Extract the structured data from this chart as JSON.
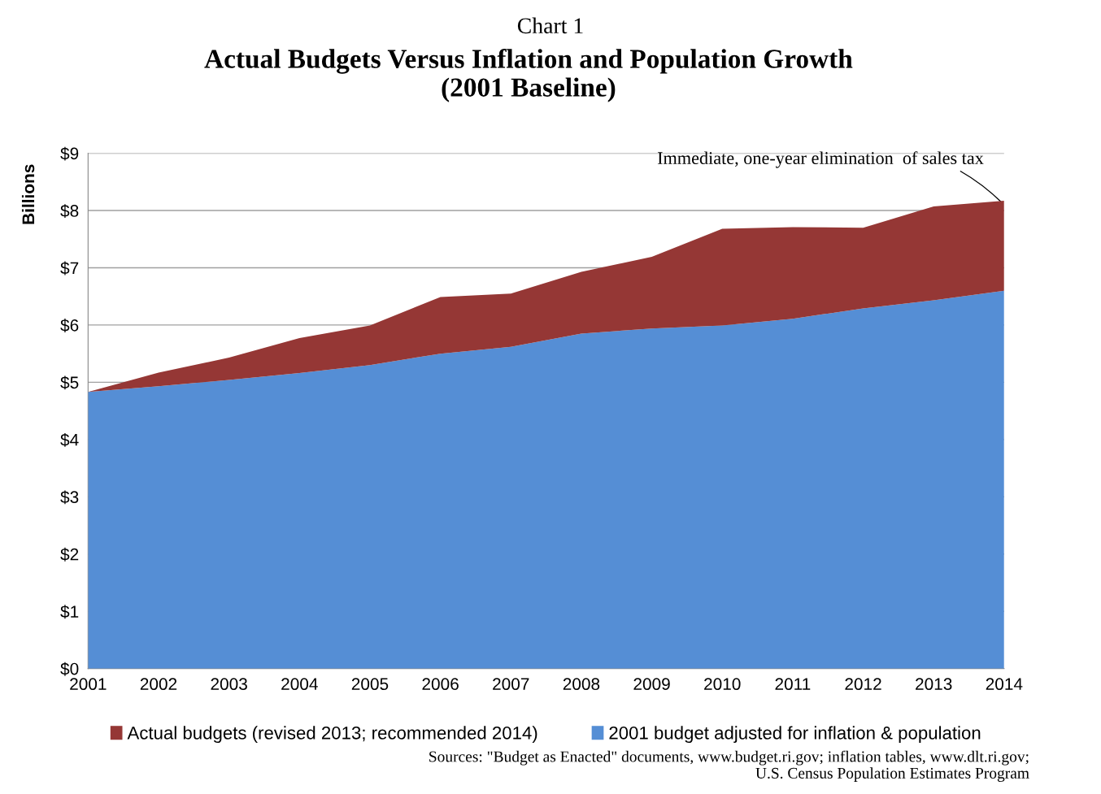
{
  "chart_data": {
    "type": "area",
    "title": "Actual Budgets Versus Inflation and Population Growth\n(2001 Baseline)",
    "ylabel": "Billions",
    "x": [
      2001,
      2002,
      2003,
      2004,
      2005,
      2006,
      2007,
      2008,
      2009,
      2010,
      2011,
      2012,
      2013,
      2014
    ],
    "series": [
      {
        "name": "Actual budgets (revised 2013; recommended 2014)",
        "color": "#953735",
        "values": [
          4.83,
          5.17,
          5.43,
          5.77,
          5.99,
          6.49,
          6.55,
          6.93,
          7.19,
          7.68,
          7.71,
          7.7,
          8.07,
          8.17
        ]
      },
      {
        "name": "2001 budget adjusted for inflation & population",
        "color": "#558ed5",
        "values": [
          4.83,
          4.93,
          5.04,
          5.16,
          5.3,
          5.5,
          5.62,
          5.85,
          5.94,
          5.99,
          6.11,
          6.29,
          6.43,
          6.6
        ]
      }
    ],
    "xlim": [
      2001,
      2014
    ],
    "xticks": [
      2001,
      2002,
      2003,
      2004,
      2005,
      2006,
      2007,
      2008,
      2009,
      2010,
      2011,
      2012,
      2013,
      2014
    ],
    "ylim": [
      0,
      9
    ],
    "yticks": [
      {
        "value": 0,
        "label": "$0"
      },
      {
        "value": 1,
        "label": "$1"
      },
      {
        "value": 2,
        "label": "$2"
      },
      {
        "value": 3,
        "label": "$3"
      },
      {
        "value": 4,
        "label": "$4"
      },
      {
        "value": 5,
        "label": "$5"
      },
      {
        "value": 6,
        "label": "$6"
      },
      {
        "value": 7,
        "label": "$7"
      },
      {
        "value": 8,
        "label": "$8"
      },
      {
        "value": 9,
        "label": "$9"
      }
    ],
    "grid": "y",
    "legend": "bottom",
    "annotations": [
      "Chart 1",
      "Sources: \"Budget as Enacted\" documents, www.budget.ri.gov; inflation tables, www.dlt.ri.gov;\nU.S. Census Population Estimates Program",
      {
        "text": "Immediate, one-year elimination  of sales tax",
        "x": 2014,
        "y": 8.1
      }
    ]
  }
}
